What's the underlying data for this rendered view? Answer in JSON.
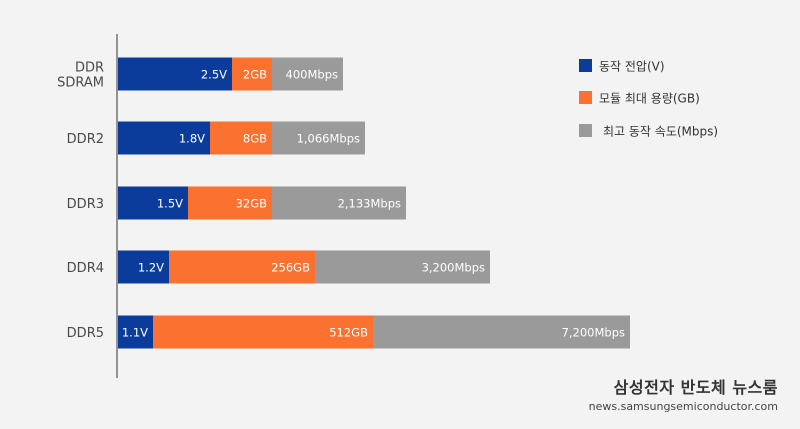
{
  "chart_data": {
    "type": "bar",
    "orientation": "horizontal",
    "stacked": true,
    "categories": [
      [
        "DDR",
        "SDRAM"
      ],
      [
        "DDR2"
      ],
      [
        "DDR3"
      ],
      [
        "DDR4"
      ],
      [
        "DDR5"
      ]
    ],
    "series": [
      {
        "name": "동작 전압(V)",
        "color": "#0b3c9c",
        "labels": [
          "2.5V",
          "1.8V",
          "1.5V",
          "1.2V",
          "1.1V"
        ]
      },
      {
        "name": "모듈 최대 용량(GB)",
        "color": "#fb7230",
        "labels": [
          "2GB",
          "8GB",
          "32GB",
          "256GB",
          "512GB"
        ]
      },
      {
        "name": "최고 동작 속도(Mbps)",
        "color": "#9a9a9a",
        "labels": [
          "400Mbps",
          "1,066Mbps",
          "2,133Mbps",
          "3,200Mbps",
          "7,200Mbps"
        ]
      }
    ],
    "legend_position": "top-right",
    "grid": false
  },
  "brand": {
    "title": "삼성전자 반도체 뉴스룸",
    "url": "news.samsungsemiconductor.com"
  }
}
